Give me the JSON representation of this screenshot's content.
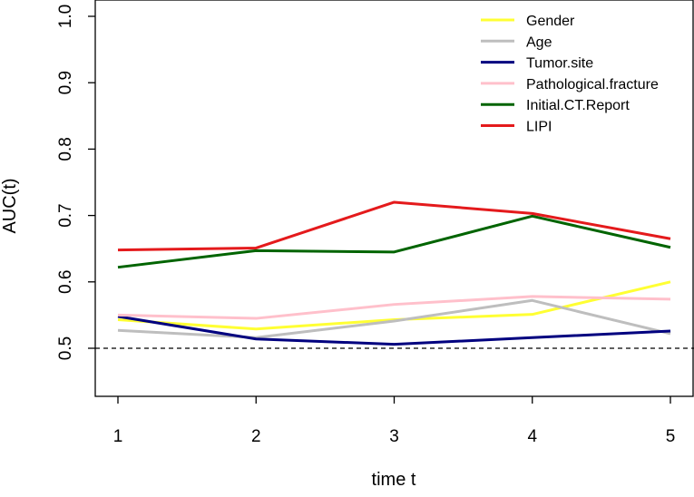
{
  "chart_data": {
    "type": "line",
    "title": "",
    "xlabel": "time t",
    "ylabel": "AUC(t)",
    "x": [
      1,
      2,
      3,
      4,
      5
    ],
    "xlim": [
      1,
      5
    ],
    "ylim": [
      0.43,
      1.0
    ],
    "xticks": [
      "1",
      "2",
      "3",
      "4",
      "5"
    ],
    "yticks": [
      "0.5",
      "0.6",
      "0.7",
      "0.8",
      "0.9",
      "1.0"
    ],
    "reference_line": {
      "y": 0.5,
      "style": "dashed",
      "color": "#000000"
    },
    "grid": false,
    "legend_position": "top-right",
    "series": [
      {
        "name": "Gender",
        "color": "#ffff33",
        "values": [
          0.543,
          0.529,
          0.543,
          0.551,
          0.6
        ]
      },
      {
        "name": "Age",
        "color": "#bebebe",
        "values": [
          0.527,
          0.516,
          0.541,
          0.572,
          0.522
        ]
      },
      {
        "name": "Tumor.site",
        "color": "#00007f",
        "values": [
          0.548,
          0.514,
          0.506,
          0.516,
          0.526
        ]
      },
      {
        "name": "Pathological.fracture",
        "color": "#ffc0cb",
        "values": [
          0.55,
          0.545,
          0.566,
          0.578,
          0.574
        ]
      },
      {
        "name": "Initial.CT.Report",
        "color": "#006400",
        "values": [
          0.622,
          0.647,
          0.645,
          0.699,
          0.652
        ]
      },
      {
        "name": "LIPI",
        "color": "#e41a1c",
        "values": [
          0.648,
          0.651,
          0.72,
          0.703,
          0.665
        ]
      }
    ]
  }
}
